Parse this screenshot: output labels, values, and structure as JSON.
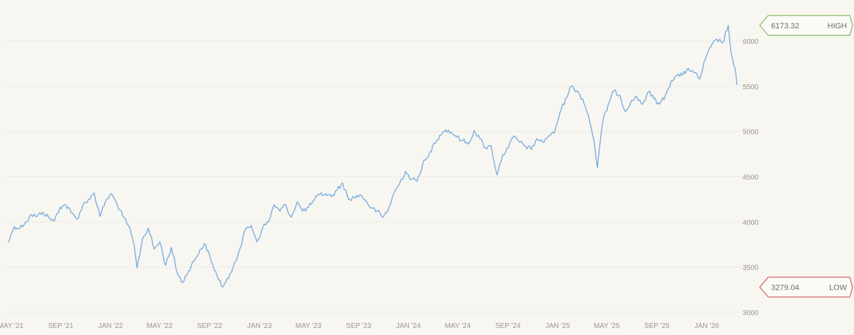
{
  "chart_data": {
    "type": "line",
    "title": "",
    "xlabel": "",
    "ylabel": "",
    "y_axis_position": "right",
    "grid": "horizontal",
    "xlim": [
      "2021-04-26",
      "2026-03-20"
    ],
    "ylim": [
      3000,
      6250
    ],
    "y_ticks": [
      3000,
      3500,
      4000,
      4500,
      5000,
      5500,
      6000
    ],
    "x_ticks": [
      {
        "label": "MAY '21",
        "date": "2021-05-01"
      },
      {
        "label": "SEP '21",
        "date": "2021-09-01"
      },
      {
        "label": "JAN '22",
        "date": "2022-01-01"
      },
      {
        "label": "MAY '22",
        "date": "2022-05-01"
      },
      {
        "label": "SEP '22",
        "date": "2022-09-01"
      },
      {
        "label": "JAN '23",
        "date": "2023-01-01"
      },
      {
        "label": "MAY '23",
        "date": "2023-05-01"
      },
      {
        "label": "SEP '23",
        "date": "2023-09-01"
      },
      {
        "label": "JAN '24",
        "date": "2024-01-01"
      },
      {
        "label": "MAY '24",
        "date": "2024-05-01"
      },
      {
        "label": "SEP '24",
        "date": "2024-09-01"
      },
      {
        "label": "JAN '25",
        "date": "2025-01-01"
      },
      {
        "label": "MAY '25",
        "date": "2025-05-01"
      },
      {
        "label": "SEP '25",
        "date": "2025-09-01"
      },
      {
        "label": "JAN '26",
        "date": "2026-01-01"
      }
    ],
    "series": [
      {
        "color": "#7aaee2",
        "points": [
          [
            "2021-04-26",
            3780
          ],
          [
            "2021-05-10",
            3950
          ],
          [
            "2021-05-24",
            3930
          ],
          [
            "2021-06-07",
            4000
          ],
          [
            "2021-06-21",
            4080
          ],
          [
            "2021-07-05",
            4060
          ],
          [
            "2021-07-19",
            4110
          ],
          [
            "2021-08-02",
            4050
          ],
          [
            "2021-08-16",
            4010
          ],
          [
            "2021-08-30",
            4160
          ],
          [
            "2021-09-13",
            4190
          ],
          [
            "2021-09-27",
            4100
          ],
          [
            "2021-10-11",
            4030
          ],
          [
            "2021-10-25",
            4180
          ],
          [
            "2021-11-08",
            4250
          ],
          [
            "2021-11-22",
            4320
          ],
          [
            "2021-12-06",
            4060
          ],
          [
            "2021-12-20",
            4230
          ],
          [
            "2022-01-03",
            4310
          ],
          [
            "2022-01-17",
            4200
          ],
          [
            "2022-01-31",
            4060
          ],
          [
            "2022-02-14",
            3960
          ],
          [
            "2022-02-28",
            3740
          ],
          [
            "2022-03-07",
            3490
          ],
          [
            "2022-03-21",
            3820
          ],
          [
            "2022-04-04",
            3930
          ],
          [
            "2022-04-18",
            3700
          ],
          [
            "2022-05-02",
            3780
          ],
          [
            "2022-05-16",
            3520
          ],
          [
            "2022-05-30",
            3720
          ],
          [
            "2022-06-13",
            3440
          ],
          [
            "2022-06-27",
            3330
          ],
          [
            "2022-07-11",
            3460
          ],
          [
            "2022-07-25",
            3570
          ],
          [
            "2022-08-08",
            3690
          ],
          [
            "2022-08-22",
            3750
          ],
          [
            "2022-09-05",
            3560
          ],
          [
            "2022-09-19",
            3410
          ],
          [
            "2022-10-03",
            3280
          ],
          [
            "2022-10-17",
            3370
          ],
          [
            "2022-10-31",
            3540
          ],
          [
            "2022-11-14",
            3700
          ],
          [
            "2022-11-28",
            3920
          ],
          [
            "2022-12-12",
            3960
          ],
          [
            "2022-12-26",
            3780
          ],
          [
            "2023-01-09",
            3940
          ],
          [
            "2023-01-23",
            4000
          ],
          [
            "2023-02-06",
            4190
          ],
          [
            "2023-02-20",
            4120
          ],
          [
            "2023-03-06",
            4190
          ],
          [
            "2023-03-20",
            4050
          ],
          [
            "2023-04-03",
            4220
          ],
          [
            "2023-04-17",
            4120
          ],
          [
            "2023-05-01",
            4160
          ],
          [
            "2023-05-15",
            4240
          ],
          [
            "2023-05-29",
            4300
          ],
          [
            "2023-06-12",
            4310
          ],
          [
            "2023-06-26",
            4280
          ],
          [
            "2023-07-10",
            4350
          ],
          [
            "2023-07-24",
            4430
          ],
          [
            "2023-08-07",
            4250
          ],
          [
            "2023-08-21",
            4270
          ],
          [
            "2023-09-04",
            4300
          ],
          [
            "2023-09-18",
            4240
          ],
          [
            "2023-10-02",
            4150
          ],
          [
            "2023-10-16",
            4120
          ],
          [
            "2023-10-30",
            4050
          ],
          [
            "2023-11-13",
            4140
          ],
          [
            "2023-11-27",
            4320
          ],
          [
            "2023-12-11",
            4430
          ],
          [
            "2023-12-25",
            4560
          ],
          [
            "2024-01-08",
            4470
          ],
          [
            "2024-01-22",
            4450
          ],
          [
            "2024-02-05",
            4640
          ],
          [
            "2024-02-19",
            4720
          ],
          [
            "2024-03-04",
            4870
          ],
          [
            "2024-03-18",
            4960
          ],
          [
            "2024-04-01",
            5020
          ],
          [
            "2024-04-15",
            4990
          ],
          [
            "2024-04-29",
            4940
          ],
          [
            "2024-05-13",
            4900
          ],
          [
            "2024-05-27",
            4860
          ],
          [
            "2024-06-10",
            5010
          ],
          [
            "2024-06-24",
            4920
          ],
          [
            "2024-07-08",
            4820
          ],
          [
            "2024-07-22",
            4840
          ],
          [
            "2024-08-05",
            4520
          ],
          [
            "2024-08-19",
            4740
          ],
          [
            "2024-09-02",
            4820
          ],
          [
            "2024-09-16",
            4950
          ],
          [
            "2024-09-30",
            4880
          ],
          [
            "2024-10-14",
            4840
          ],
          [
            "2024-10-28",
            4800
          ],
          [
            "2024-11-11",
            4920
          ],
          [
            "2024-11-25",
            4880
          ],
          [
            "2024-12-09",
            4950
          ],
          [
            "2024-12-23",
            4980
          ],
          [
            "2025-01-06",
            5200
          ],
          [
            "2025-01-20",
            5360
          ],
          [
            "2025-02-03",
            5500
          ],
          [
            "2025-02-17",
            5450
          ],
          [
            "2025-03-03",
            5360
          ],
          [
            "2025-03-17",
            5180
          ],
          [
            "2025-03-31",
            4900
          ],
          [
            "2025-04-08",
            4600
          ],
          [
            "2025-04-21",
            5100
          ],
          [
            "2025-05-05",
            5300
          ],
          [
            "2025-05-19",
            5450
          ],
          [
            "2025-06-02",
            5400
          ],
          [
            "2025-06-16",
            5220
          ],
          [
            "2025-06-30",
            5340
          ],
          [
            "2025-07-14",
            5380
          ],
          [
            "2025-07-28",
            5300
          ],
          [
            "2025-08-11",
            5440
          ],
          [
            "2025-08-25",
            5360
          ],
          [
            "2025-09-08",
            5300
          ],
          [
            "2025-09-22",
            5400
          ],
          [
            "2025-10-06",
            5560
          ],
          [
            "2025-10-20",
            5620
          ],
          [
            "2025-11-03",
            5620
          ],
          [
            "2025-11-17",
            5700
          ],
          [
            "2025-12-01",
            5650
          ],
          [
            "2025-12-15",
            5580
          ],
          [
            "2025-12-29",
            5800
          ],
          [
            "2026-01-12",
            5940
          ],
          [
            "2026-01-26",
            6020
          ],
          [
            "2026-02-09",
            5980
          ],
          [
            "2026-02-23",
            6173.32
          ],
          [
            "2026-03-02",
            5870
          ],
          [
            "2026-03-09",
            5720
          ],
          [
            "2026-03-13",
            5650
          ],
          [
            "2026-03-16",
            5520
          ]
        ]
      }
    ],
    "annotations": [
      {
        "label": "HIGH",
        "value_text": "6173.32",
        "value": 6173.32,
        "color": "#8dbf6e"
      },
      {
        "label": "LOW",
        "value_text": "3279.04",
        "value": 3279.04,
        "color": "#d66872"
      }
    ]
  }
}
